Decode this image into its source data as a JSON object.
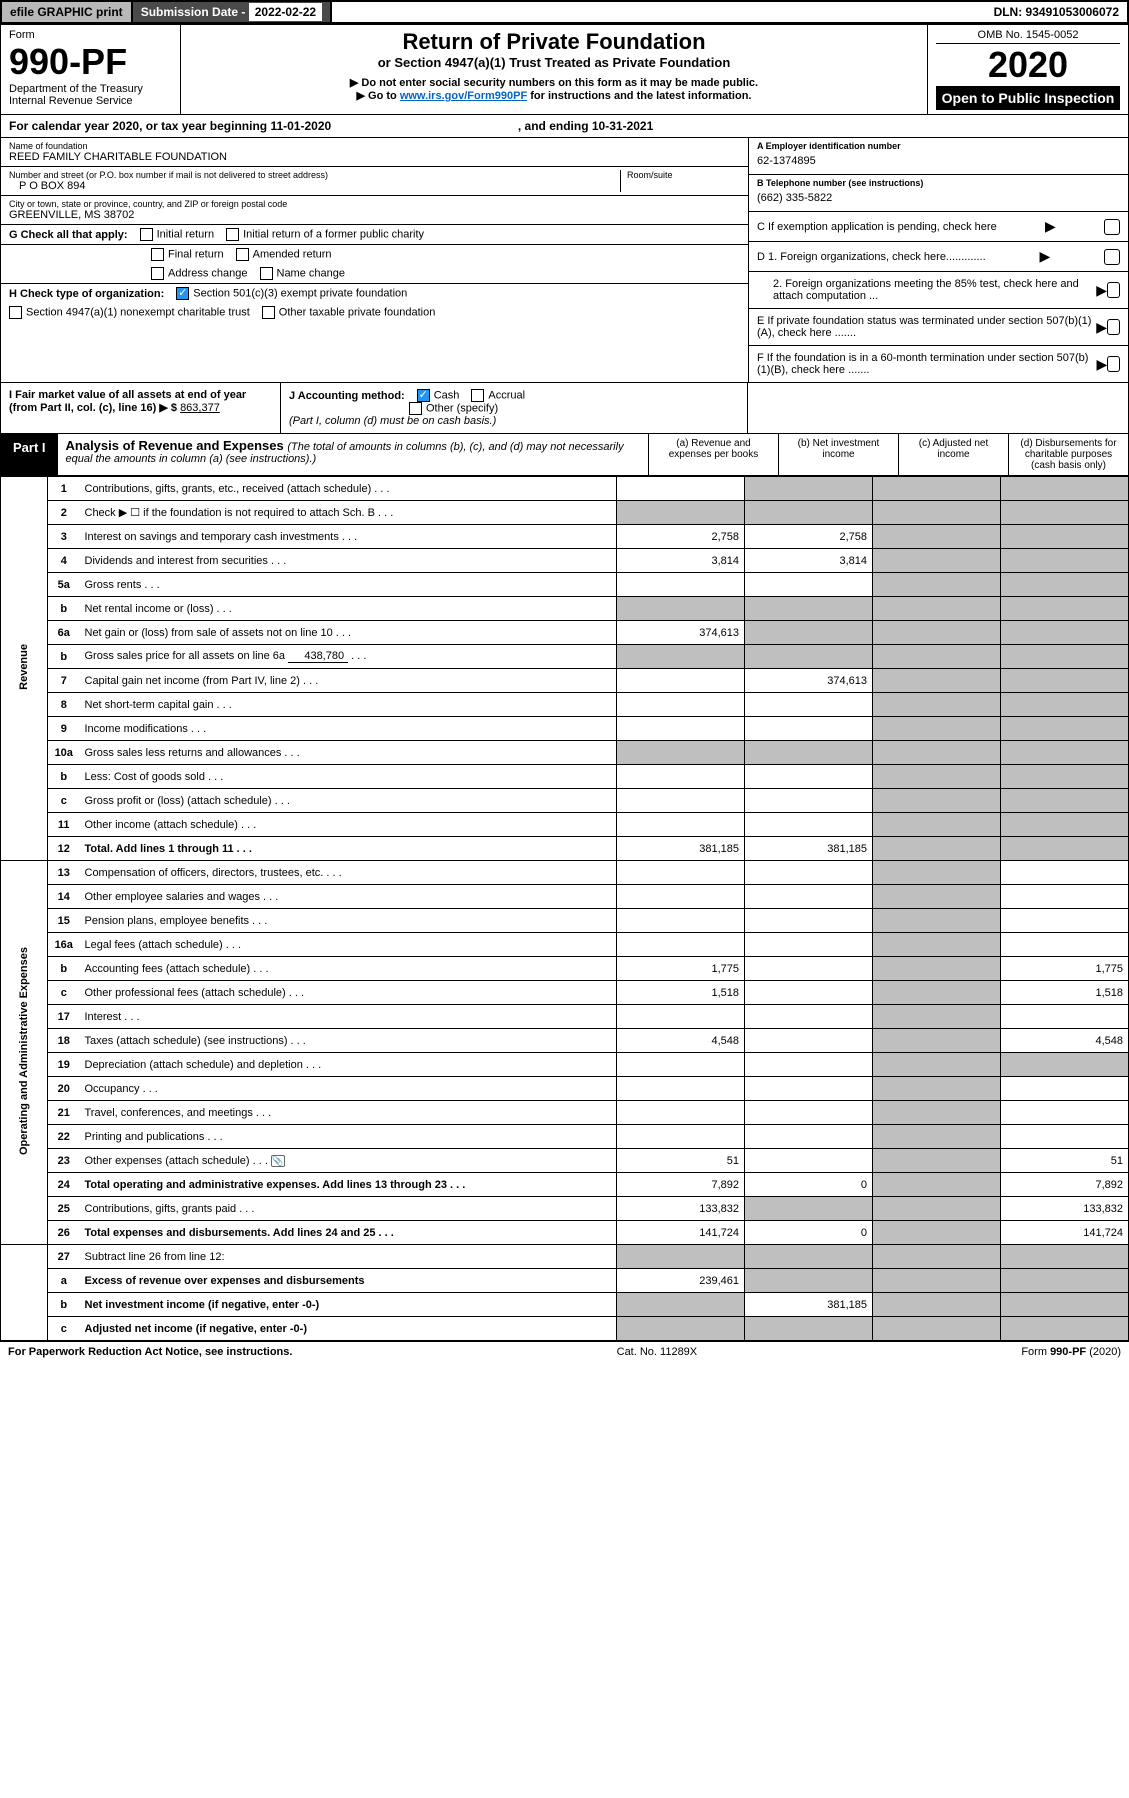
{
  "topbar": {
    "efile": "efile GRAPHIC print",
    "subdate_label": "Submission Date - ",
    "subdate": "2022-02-22",
    "dln": "DLN: 93491053006072"
  },
  "header": {
    "form": "Form",
    "num": "990-PF",
    "dept": "Department of the Treasury",
    "irs": "Internal Revenue Service",
    "title": "Return of Private Foundation",
    "subtitle": "or Section 4947(a)(1) Trust Treated as Private Foundation",
    "instr1": "▶ Do not enter social security numbers on this form as it may be made public.",
    "instr2a": "▶ Go to ",
    "instr2link": "www.irs.gov/Form990PF",
    "instr2b": " for instructions and the latest information.",
    "omb": "OMB No. 1545-0052",
    "year": "2020",
    "open": "Open to Public Inspection"
  },
  "calyear": {
    "text": "For calendar year 2020, or tax year beginning ",
    "begin": "11-01-2020",
    "mid": ", and ending ",
    "end": "10-31-2021"
  },
  "id": {
    "name_label": "Name of foundation",
    "name": "REED FAMILY CHARITABLE FOUNDATION",
    "addr_label": "Number and street (or P.O. box number if mail is not delivered to street address)",
    "room_label": "Room/suite",
    "addr": "P O BOX 894",
    "city_label": "City or town, state or province, country, and ZIP or foreign postal code",
    "city": "GREENVILLE, MS  38702",
    "ein_label": "A Employer identification number",
    "ein": "62-1374895",
    "tel_label": "B Telephone number (see instructions)",
    "tel": "(662) 335-5822",
    "c": "C If exemption application is pending, check here",
    "d1": "D 1. Foreign organizations, check here.............",
    "d2": "2. Foreign organizations meeting the 85% test, check here and attach computation ...",
    "e": "E  If private foundation status was terminated under section 507(b)(1)(A), check here .......",
    "f": "F  If the foundation is in a 60-month termination under section 507(b)(1)(B), check here .......",
    "g": "G Check all that apply:",
    "g_opts": [
      "Initial return",
      "Initial return of a former public charity",
      "Final return",
      "Amended return",
      "Address change",
      "Name change"
    ],
    "h": "H Check type of organization:",
    "h1": "Section 501(c)(3) exempt private foundation",
    "h2": "Section 4947(a)(1) nonexempt charitable trust",
    "h3": "Other taxable private foundation",
    "i": "I Fair market value of all assets at end of year (from Part II, col. (c), line 16) ▶ $ ",
    "i_val": "863,377",
    "j": "J Accounting method:",
    "j_cash": "Cash",
    "j_accrual": "Accrual",
    "j_other": "Other (specify)",
    "j_note": "(Part I, column (d) must be on cash basis.)"
  },
  "part1": {
    "label": "Part I",
    "title": "Analysis of Revenue and Expenses ",
    "note": "(The total of amounts in columns (b), (c), and (d) may not necessarily equal the amounts in column (a) (see instructions).)",
    "cols": {
      "a": "(a)   Revenue and expenses per books",
      "b": "(b)   Net investment income",
      "c": "(c)  Adjusted net income",
      "d": "(d)  Disbursements for charitable purposes (cash basis only)"
    }
  },
  "rev_label": "Revenue",
  "exp_label": "Operating and Administrative Expenses",
  "rows": [
    {
      "n": "1",
      "d": "Contributions, gifts, grants, etc., received (attach schedule)"
    },
    {
      "n": "2",
      "d": "Check ▶ ☐ if the foundation is not required to attach Sch. B"
    },
    {
      "n": "3",
      "d": "Interest on savings and temporary cash investments",
      "a": "2,758",
      "b": "2,758"
    },
    {
      "n": "4",
      "d": "Dividends and interest from securities",
      "a": "3,814",
      "b": "3,814"
    },
    {
      "n": "5a",
      "d": "Gross rents"
    },
    {
      "n": "b",
      "d": "Net rental income or (loss)"
    },
    {
      "n": "6a",
      "d": "Net gain or (loss) from sale of assets not on line 10",
      "a": "374,613"
    },
    {
      "n": "b",
      "d": "Gross sales price for all assets on line 6a",
      "inline": "438,780"
    },
    {
      "n": "7",
      "d": "Capital gain net income (from Part IV, line 2)",
      "b": "374,613"
    },
    {
      "n": "8",
      "d": "Net short-term capital gain"
    },
    {
      "n": "9",
      "d": "Income modifications"
    },
    {
      "n": "10a",
      "d": "Gross sales less returns and allowances"
    },
    {
      "n": "b",
      "d": "Less: Cost of goods sold"
    },
    {
      "n": "c",
      "d": "Gross profit or (loss) (attach schedule)"
    },
    {
      "n": "11",
      "d": "Other income (attach schedule)"
    },
    {
      "n": "12",
      "d": "Total. Add lines 1 through 11",
      "bold": true,
      "a": "381,185",
      "b": "381,185"
    }
  ],
  "exprows": [
    {
      "n": "13",
      "d": "Compensation of officers, directors, trustees, etc."
    },
    {
      "n": "14",
      "d": "Other employee salaries and wages"
    },
    {
      "n": "15",
      "d": "Pension plans, employee benefits"
    },
    {
      "n": "16a",
      "d": "Legal fees (attach schedule)"
    },
    {
      "n": "b",
      "d": "Accounting fees (attach schedule)",
      "a": "1,775",
      "dd": "1,775"
    },
    {
      "n": "c",
      "d": "Other professional fees (attach schedule)",
      "a": "1,518",
      "dd": "1,518"
    },
    {
      "n": "17",
      "d": "Interest"
    },
    {
      "n": "18",
      "d": "Taxes (attach schedule) (see instructions)",
      "a": "4,548",
      "dd": "4,548"
    },
    {
      "n": "19",
      "d": "Depreciation (attach schedule) and depletion"
    },
    {
      "n": "20",
      "d": "Occupancy"
    },
    {
      "n": "21",
      "d": "Travel, conferences, and meetings"
    },
    {
      "n": "22",
      "d": "Printing and publications"
    },
    {
      "n": "23",
      "d": "Other expenses (attach schedule)",
      "icon": true,
      "a": "51",
      "dd": "51"
    },
    {
      "n": "24",
      "d": "Total operating and administrative expenses. Add lines 13 through 23",
      "bold": true,
      "a": "7,892",
      "b": "0",
      "dd": "7,892"
    },
    {
      "n": "25",
      "d": "Contributions, gifts, grants paid",
      "a": "133,832",
      "dd": "133,832"
    },
    {
      "n": "26",
      "d": "Total expenses and disbursements. Add lines 24 and 25",
      "bold": true,
      "a": "141,724",
      "b": "0",
      "dd": "141,724"
    }
  ],
  "botrows": [
    {
      "n": "27",
      "d": "Subtract line 26 from line 12:"
    },
    {
      "n": "a",
      "d": "Excess of revenue over expenses and disbursements",
      "bold": true,
      "a": "239,461"
    },
    {
      "n": "b",
      "d": "Net investment income (if negative, enter -0-)",
      "bold": true,
      "b": "381,185"
    },
    {
      "n": "c",
      "d": "Adjusted net income (if negative, enter -0-)",
      "bold": true
    }
  ],
  "footer": {
    "left": "For Paperwork Reduction Act Notice, see instructions.",
    "mid": "Cat. No. 11289X",
    "right": "Form 990-PF (2020)"
  },
  "colors": {
    "grey": "#bfbfbf",
    "black": "#000000",
    "link": "#0066cc",
    "darkgrey": "#4a4a4a",
    "lightgrey": "#b8b8b8",
    "checkblue": "#2196f3"
  }
}
